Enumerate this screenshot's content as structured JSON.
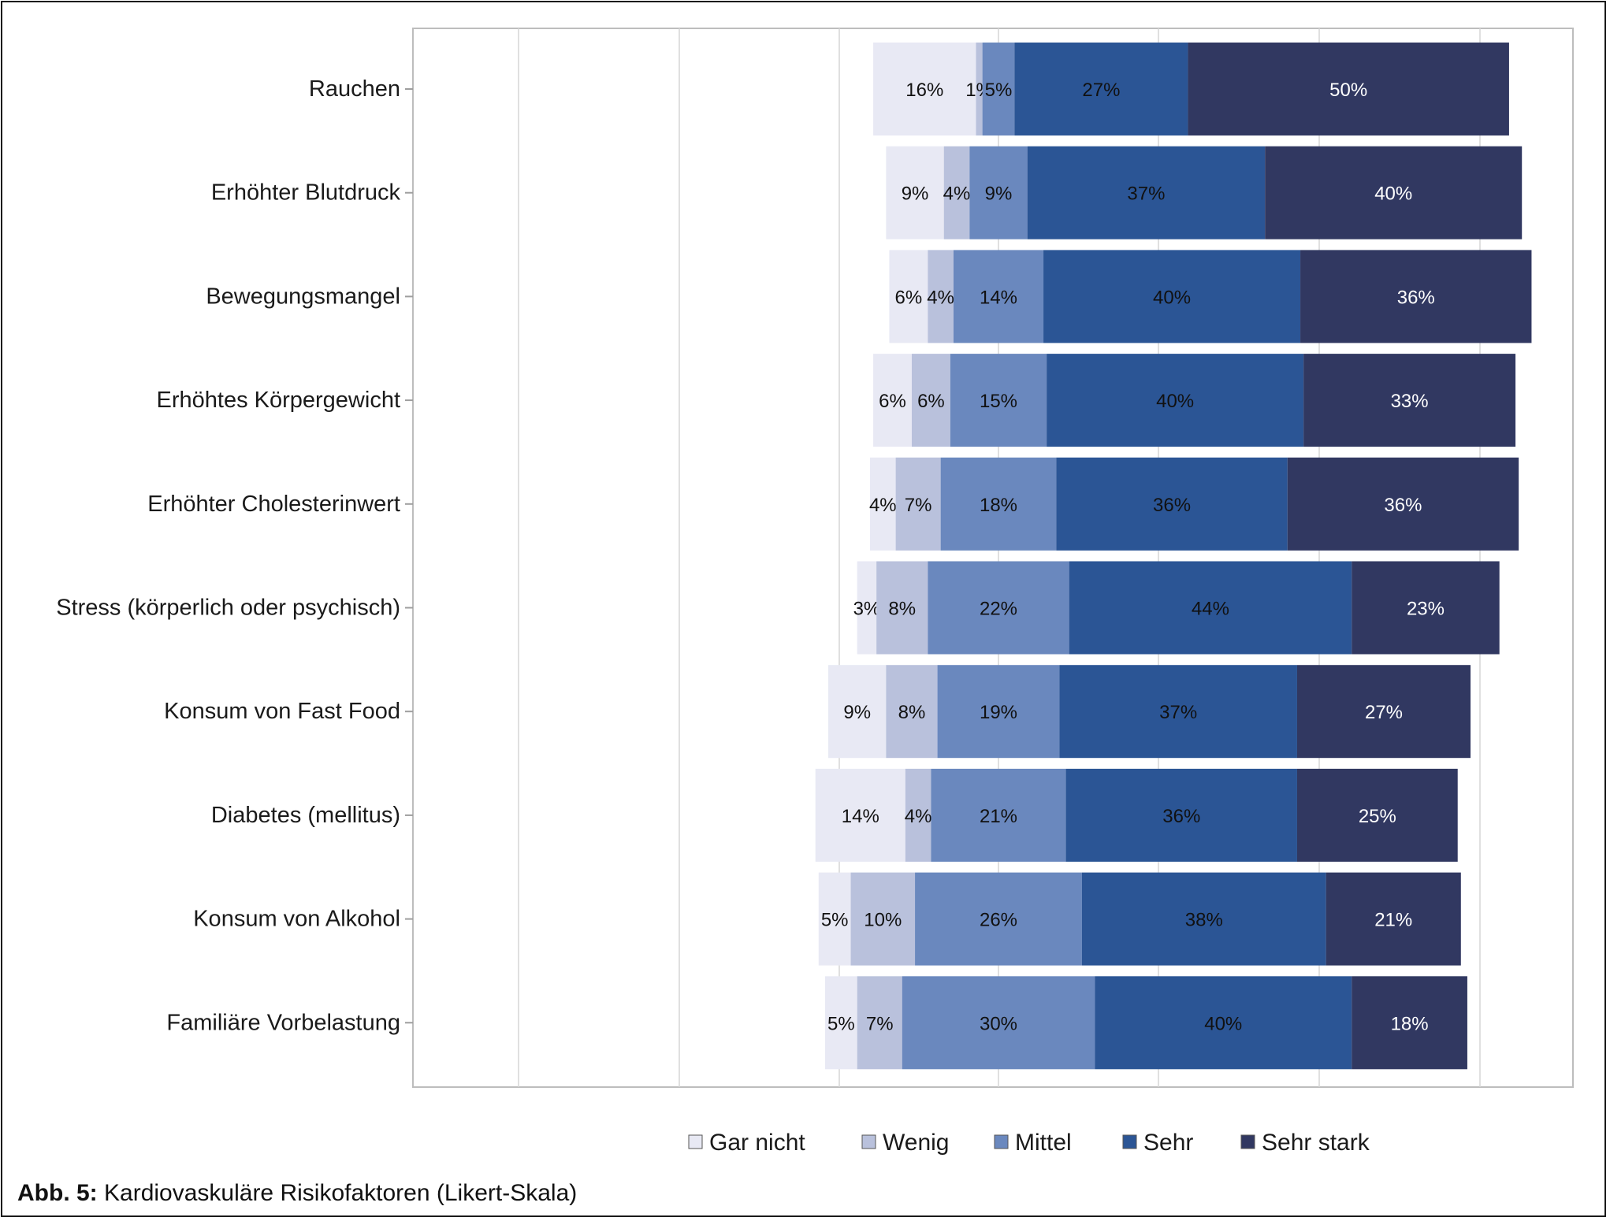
{
  "chart_data": {
    "type": "bar",
    "orientation": "horizontal",
    "stacked": true,
    "title": "",
    "xlabel": "",
    "ylabel": "",
    "grid": true,
    "legend_position": "bottom",
    "categories": [
      "Rauchen",
      "Erhöhter Blutdruck",
      "Bewegungsmangel",
      "Erhöhtes Körpergewicht",
      "Erhöhter Cholesterinwert",
      "Stress (körperlich oder psychisch)",
      "Konsum von Fast Food",
      "Diabetes (mellitus)",
      "Konsum von Alkohol",
      "Familiäre Vorbelastung"
    ],
    "series": [
      {
        "name": "Gar nicht",
        "color": "#e8e9f4",
        "label_color": "#111111",
        "values": [
          16,
          9,
          6,
          6,
          4,
          3,
          9,
          14,
          5,
          5
        ]
      },
      {
        "name": "Wenig",
        "color": "#b9c1dc",
        "label_color": "#111111",
        "values": [
          1,
          4,
          4,
          6,
          7,
          8,
          8,
          4,
          10,
          7
        ]
      },
      {
        "name": "Mittel",
        "color": "#6a88be",
        "label_color": "#111111",
        "values": [
          5,
          9,
          14,
          15,
          18,
          22,
          19,
          21,
          26,
          30
        ]
      },
      {
        "name": "Sehr",
        "color": "#2b5595",
        "label_color": "#111111",
        "values": [
          27,
          37,
          40,
          40,
          36,
          44,
          37,
          36,
          38,
          40
        ]
      },
      {
        "name": "Sehr stark",
        "color": "#313861",
        "label_color": "#ffffff",
        "values": [
          50,
          40,
          36,
          33,
          36,
          23,
          27,
          25,
          21,
          18
        ]
      }
    ],
    "value_suffix": "%"
  },
  "caption": {
    "prefix": "Abb. 5:",
    "text": " Kardiovaskuläre Risikofaktoren (Likert-Skala)"
  }
}
